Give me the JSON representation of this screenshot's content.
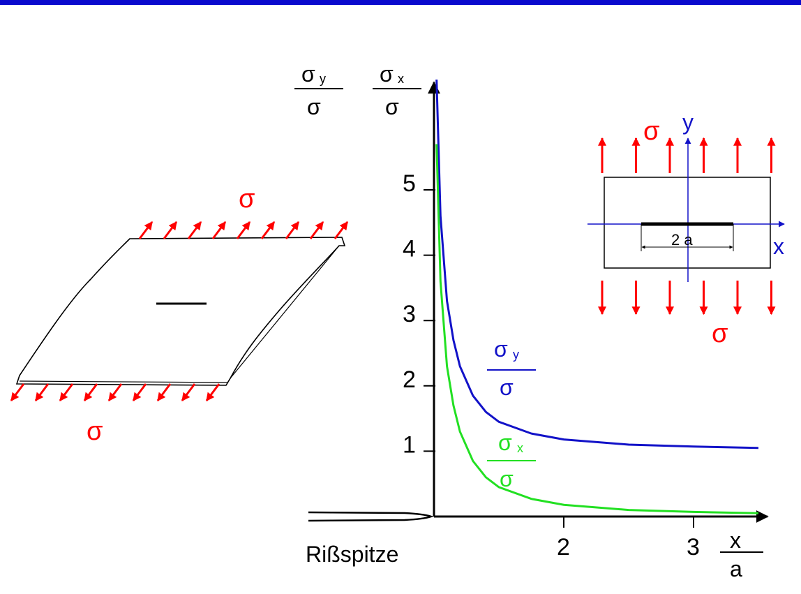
{
  "colors": {
    "top_bar": "#0a0acd",
    "sigma_y_curve": "#1212c8",
    "sigma_x_curve": "#22e022",
    "load_arrows": "#ff0000",
    "axes": "#000000"
  },
  "labels": {
    "sigma": "σ",
    "y_label_left_num": "σ",
    "y_label_left_sub": "y",
    "y_label_left_den": "σ",
    "y_label_right_num": "σ",
    "y_label_right_sub": "x",
    "y_label_right_den": "σ",
    "x_label_num": "x",
    "x_label_den": "a",
    "crack_tip": "Rißspitze",
    "curve_sigma_y_num": "σ",
    "curve_sigma_y_sub": "y",
    "curve_sigma_y_den": "σ",
    "curve_sigma_x_num": "σ",
    "curve_sigma_x_sub": "x",
    "curve_sigma_x_den": "σ",
    "plate_sigma_top": "σ",
    "plate_sigma_bottom": "σ",
    "inset_sigma_top": "σ",
    "inset_sigma_bottom": "σ",
    "inset_axis_x": "x",
    "inset_axis_y": "y",
    "inset_crack_length": "2 a"
  },
  "axes": {
    "y_ticks": [
      "1",
      "2",
      "3",
      "4",
      "5"
    ],
    "x_ticks": [
      "2",
      "3"
    ]
  },
  "chart_data": {
    "type": "line",
    "xlabel": "x/a",
    "ylabel": "σy/σ, σx/σ",
    "x_ticks": [
      2,
      3
    ],
    "y_ticks": [
      1,
      2,
      3,
      4,
      5
    ],
    "series": [
      {
        "name": "σy/σ",
        "x": [
          1.02,
          1.05,
          1.1,
          1.15,
          1.2,
          1.3,
          1.4,
          1.5,
          1.75,
          2.0,
          2.5,
          3.0,
          3.5
        ],
        "values": [
          7.1,
          4.6,
          3.3,
          2.7,
          2.3,
          1.85,
          1.6,
          1.45,
          1.27,
          1.18,
          1.1,
          1.07,
          1.05
        ]
      },
      {
        "name": "σx/σ",
        "x": [
          1.02,
          1.05,
          1.1,
          1.15,
          1.2,
          1.3,
          1.4,
          1.5,
          1.75,
          2.0,
          2.5,
          3.0,
          3.5
        ],
        "values": [
          5.7,
          3.6,
          2.3,
          1.7,
          1.3,
          0.85,
          0.6,
          0.45,
          0.27,
          0.18,
          0.1,
          0.07,
          0.05
        ]
      }
    ]
  }
}
